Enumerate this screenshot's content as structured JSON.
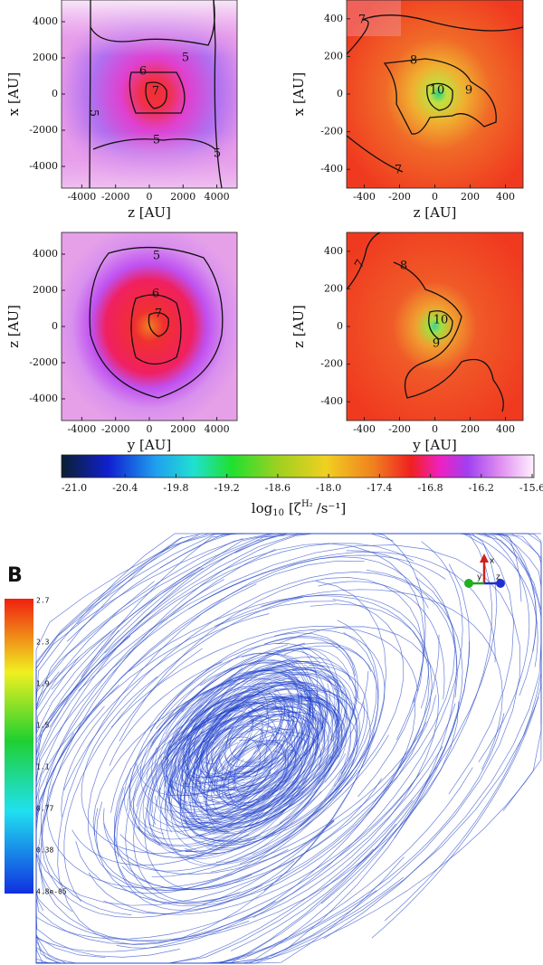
{
  "panels": [
    {
      "xlabel": "z [AU]",
      "ylabel": "x [AU]",
      "xlim": [
        -5200,
        5200
      ],
      "ylim": [
        -5200,
        5200
      ],
      "xticks": [
        -4000,
        -2000,
        0,
        2000,
        4000
      ],
      "yticks": [
        -4000,
        -2000,
        0,
        2000,
        4000
      ],
      "contour_labels": [
        "5",
        "6",
        "7",
        "5",
        "5",
        "5"
      ]
    },
    {
      "xlabel": "z [AU]",
      "ylabel": "x [AU]",
      "xlim": [
        -500,
        500
      ],
      "ylim": [
        -500,
        500
      ],
      "xticks": [
        -400,
        -200,
        0,
        200,
        400
      ],
      "yticks": [
        -400,
        -200,
        0,
        200,
        400
      ],
      "contour_labels": [
        "7",
        "8",
        "10",
        "9",
        "7"
      ]
    },
    {
      "xlabel": "y [AU]",
      "ylabel": "z [AU]",
      "xlim": [
        -5200,
        5200
      ],
      "ylim": [
        -5200,
        5200
      ],
      "xticks": [
        -4000,
        -2000,
        0,
        2000,
        4000
      ],
      "yticks": [
        -4000,
        -2000,
        0,
        2000,
        4000
      ],
      "contour_labels": [
        "5",
        "6",
        "7"
      ]
    },
    {
      "xlabel": "y [AU]",
      "ylabel": "z [AU]",
      "xlim": [
        -500,
        500
      ],
      "ylim": [
        -500,
        500
      ],
      "xticks": [
        -400,
        -200,
        0,
        200,
        400
      ],
      "yticks": [
        -400,
        -200,
        0,
        200,
        400
      ],
      "contour_labels": [
        "7",
        "8",
        "10",
        "9"
      ]
    }
  ],
  "colorbar": {
    "ticks": [
      {
        "value": -21,
        "label": "-21.0"
      },
      -20.4,
      -19.8,
      -19.2,
      -18.6,
      {
        "value": -18,
        "label": "-18.0"
      },
      -17.4,
      -16.8,
      -16.2,
      -15.6
    ],
    "label_main": "log",
    "label_sub": "10",
    "label_rest": "[ζ",
    "label_sup": "H₂",
    "label_tail": "/s⁻¹]"
  },
  "figure_b": {
    "label": "B",
    "colorbar_ticks": [
      "2.7",
      "2.3",
      "1.9",
      "1.5",
      "1.1",
      "0.77",
      "0.38",
      "4.8e-05"
    ],
    "axes": [
      "x",
      "y",
      "z"
    ]
  }
}
